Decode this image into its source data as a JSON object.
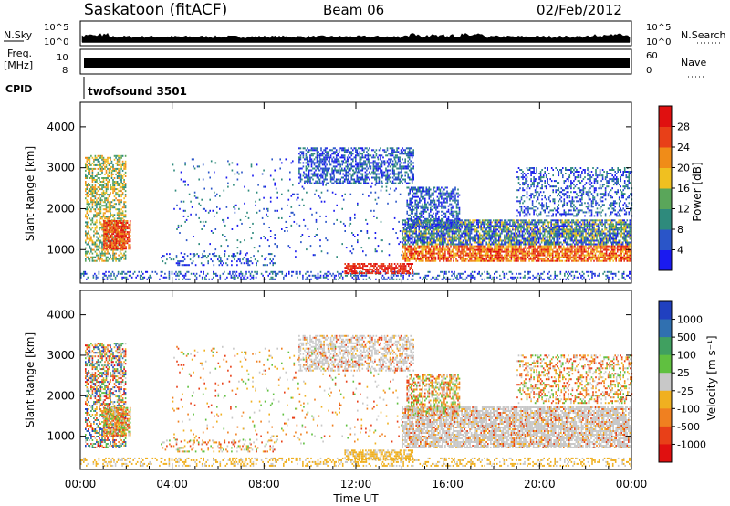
{
  "header": {
    "station": "Saskatoon (fitACF)",
    "beam": "Beam 06",
    "date": "02/Feb/2012"
  },
  "top_panels": {
    "nsky_label": "N.Sky",
    "nsearch_label": "N.Search",
    "count_ticks": [
      "10^5",
      "10^0"
    ],
    "freq_label_1": "Freq.",
    "freq_label_2": "[MHz]",
    "freq_ticks": [
      "10",
      "8"
    ],
    "nave_label": "Nave",
    "nave_ticks": [
      "60",
      "0"
    ],
    "cpid_label": "CPID",
    "cpid_value": "twofsound 3501"
  },
  "chart_data": [
    {
      "type": "heatmap",
      "name": "power",
      "ylabel": "Slant Range [km]",
      "ylim": [
        180,
        4600
      ],
      "yticks": [
        1000,
        2000,
        3000,
        4000
      ],
      "colorbar_label": "Power [dB]",
      "colorbar_ticks": [
        "4",
        "8",
        "12",
        "16",
        "20",
        "24",
        "28"
      ],
      "colorbar_colors": [
        "#1a1af0",
        "#2a55c8",
        "#2e8a7c",
        "#5aa65a",
        "#f0c020",
        "#f08c18",
        "#e84018",
        "#e01010"
      ],
      "x": [
        "00:00",
        "04:00",
        "08:00",
        "12:00",
        "16:00",
        "20:00",
        "00:00"
      ],
      "xlim_hours": [
        0,
        24
      ],
      "grid": false
    },
    {
      "type": "heatmap",
      "name": "velocity",
      "ylabel": "Slant Range [km]",
      "ylim": [
        180,
        4600
      ],
      "yticks": [
        1000,
        2000,
        3000,
        4000
      ],
      "colorbar_label": "Velocity [m s⁻¹]",
      "colorbar_ticks": [
        "1000",
        "500",
        "100",
        "25",
        "-25",
        "-100",
        "-500",
        "-1000"
      ],
      "colorbar_colors": [
        "#2040c0",
        "#3070b0",
        "#40a060",
        "#60c040",
        "#c8c8c8",
        "#f0b020",
        "#f08020",
        "#e84018",
        "#e01010"
      ],
      "x": [
        "00:00",
        "04:00",
        "08:00",
        "12:00",
        "16:00",
        "20:00",
        "00:00"
      ],
      "xlim_hours": [
        0,
        24
      ],
      "xlabel": "Time UT",
      "grid": false
    }
  ]
}
